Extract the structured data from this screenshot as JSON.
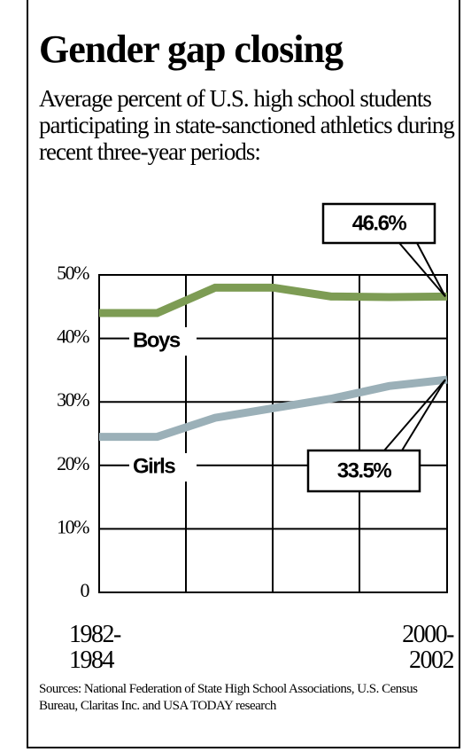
{
  "chart_data": {
    "type": "line",
    "title": "Gender gap closing",
    "subtitle": "Average percent of U.S. high school students participating in state-sanctioned athletics during recent three-year periods:",
    "source": "Sources: National Federation of State High School Associations, U.S. Census Bureau, Claritas Inc. and USA TODAY research",
    "categories": [
      "1982-1984",
      null,
      null,
      null,
      null,
      null,
      "2000-2002"
    ],
    "series": [
      {
        "name": "Boys",
        "color": "#7d9c54",
        "values": [
          44,
          44,
          48,
          48,
          46.6,
          46.5,
          46.6
        ],
        "value_labels": [
          null,
          null,
          null,
          null,
          null,
          null,
          "46.6%"
        ]
      },
      {
        "name": "Girls",
        "color": "#9bb0b8",
        "values": [
          24.5,
          24.5,
          27.5,
          29,
          30.5,
          32.5,
          33.5
        ],
        "value_labels": [
          null,
          null,
          null,
          null,
          null,
          null,
          "33.5%"
        ]
      }
    ],
    "ylim": [
      0,
      50
    ],
    "yticks": [
      0,
      {
        "value": 10,
        "label": "10%"
      },
      {
        "value": 20,
        "label": "20%"
      },
      {
        "value": 30,
        "label": "30%"
      },
      {
        "value": 40,
        "label": "40%"
      },
      {
        "value": 50,
        "label": "50%"
      }
    ],
    "grid": true
  }
}
